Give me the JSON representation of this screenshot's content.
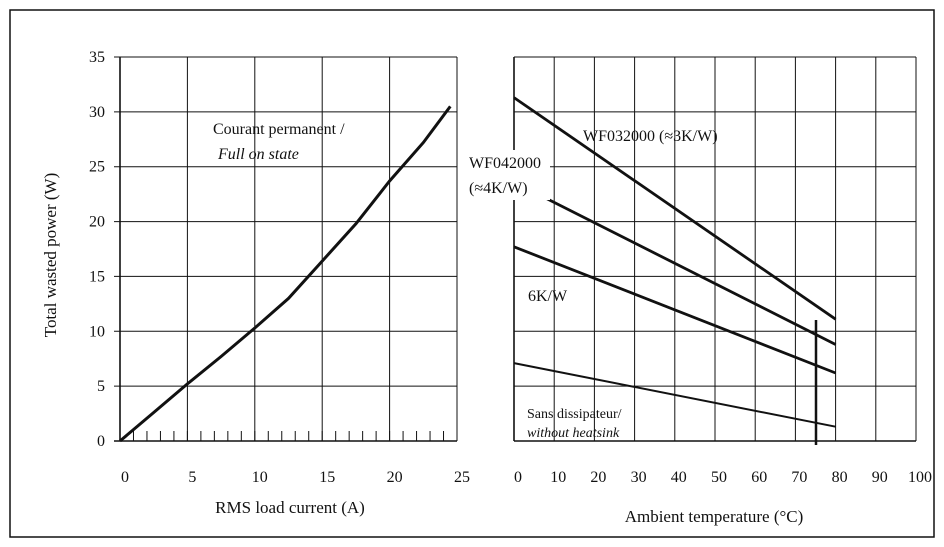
{
  "colors": {
    "line": "#111111",
    "grid": "#111111",
    "background": "#ffffff"
  },
  "chart_data": [
    {
      "type": "line",
      "title": "",
      "xlabel": "RMS load current (A)",
      "ylabel": "Total wasted power (W)",
      "xlim": [
        0,
        25
      ],
      "ylim": [
        0,
        35
      ],
      "xticks": [
        "0",
        "5",
        "10",
        "15",
        "20",
        "25"
      ],
      "yticks": [
        "0",
        "5",
        "10",
        "15",
        "20",
        "25",
        "30",
        "35"
      ],
      "grid": true,
      "series": [
        {
          "x": [
            0,
            2.5,
            5,
            7.5,
            10,
            12.5,
            15,
            17.5,
            20,
            22.5,
            24.5
          ],
          "y": [
            0,
            2.6,
            5.2,
            7.7,
            10.3,
            13.0,
            16.4,
            19.8,
            23.7,
            27.2,
            30.5
          ]
        }
      ],
      "annotations": [
        {
          "line1": "Courant permanent /",
          "line2": "Full on state"
        }
      ]
    },
    {
      "type": "line",
      "title": "",
      "xlabel": "Ambient temperature (°C)",
      "ylabel": "",
      "xlim": [
        0,
        100
      ],
      "ylim": [
        0,
        35
      ],
      "xticks": [
        "0",
        "10",
        "20",
        "30",
        "40",
        "50",
        "60",
        "70",
        "80",
        "90",
        "100"
      ],
      "grid": true,
      "series": [
        {
          "name": "WF032000 (≈3K/W)",
          "x": [
            0,
            80
          ],
          "y": [
            31.3,
            11.1
          ]
        },
        {
          "name": "WF042000 (≈4K/W)",
          "x": [
            0,
            80
          ],
          "y": [
            23.6,
            8.8
          ]
        },
        {
          "name": "6K/W",
          "x": [
            0,
            80
          ],
          "y": [
            17.7,
            6.2
          ]
        },
        {
          "name": "Sans dissipateur/ without heatsink",
          "x": [
            0,
            80
          ],
          "y": [
            7.1,
            1.3
          ]
        }
      ],
      "labels": {
        "wf032": "WF032000 (≈3K/W)",
        "wf042_line1": "WF042000",
        "wf042_line2": "(≈4K/W)",
        "k6": "6K/W",
        "sans_line1": "Sans dissipateur/",
        "sans_line2": "without  heatsink"
      }
    }
  ]
}
